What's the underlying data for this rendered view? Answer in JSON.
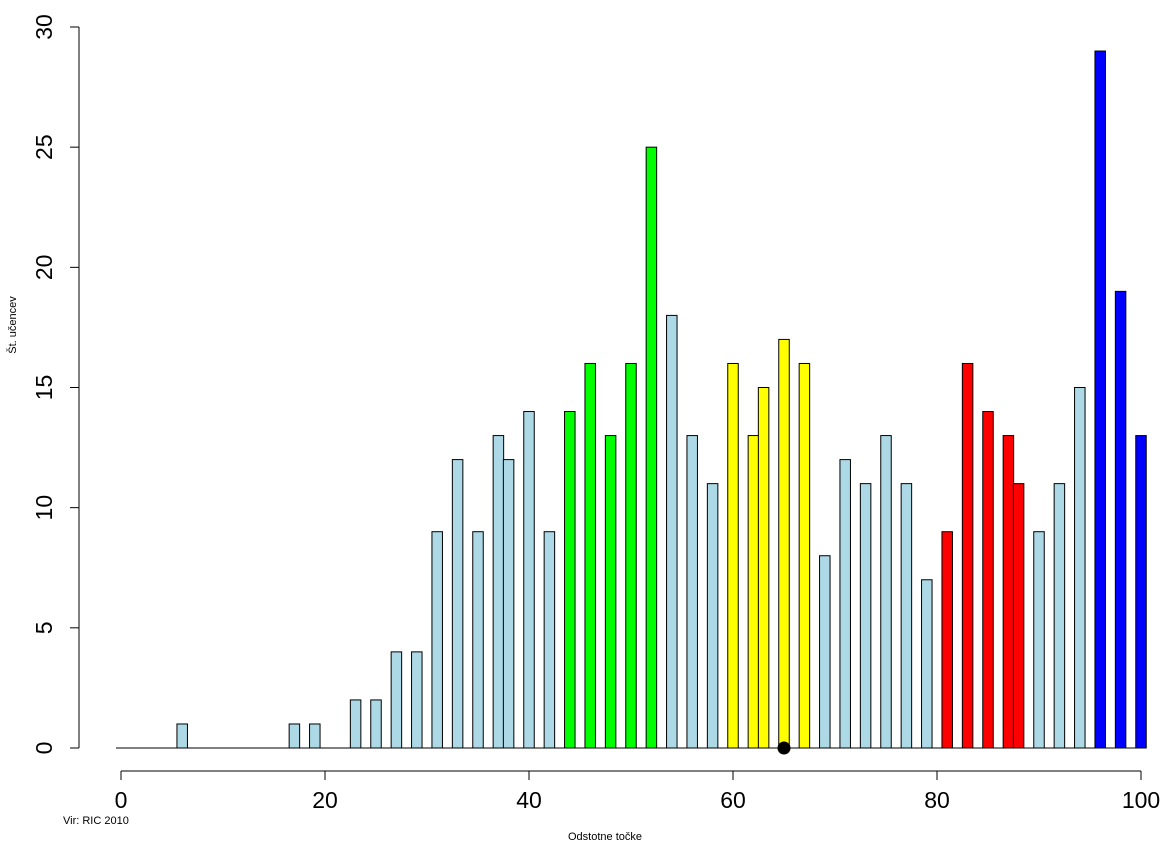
{
  "chart_data": {
    "type": "bar",
    "xlabel": "Odstotne točke",
    "ylabel": "Št. učencev",
    "source_note": "Vir: RIC 2010",
    "xlim": [
      0,
      100
    ],
    "ylim": [
      0,
      30
    ],
    "x_ticks": [
      0,
      20,
      40,
      60,
      80,
      100
    ],
    "y_ticks": [
      0,
      5,
      10,
      15,
      20,
      25,
      30
    ],
    "grid": false,
    "legend": "none",
    "bar_outline": "#000000",
    "colors": {
      "default": "#add8e6",
      "green": "#00ff00",
      "yellow": "#ffff00",
      "red": "#ff0000",
      "blue": "#0000ff",
      "marker": "#000000"
    },
    "marker": {
      "x": 65,
      "y": 0
    },
    "bars": [
      {
        "x": 6,
        "value": 1,
        "color": "default"
      },
      {
        "x": 17,
        "value": 1,
        "color": "default"
      },
      {
        "x": 19,
        "value": 1,
        "color": "default"
      },
      {
        "x": 23,
        "value": 2,
        "color": "default"
      },
      {
        "x": 25,
        "value": 2,
        "color": "default"
      },
      {
        "x": 27,
        "value": 4,
        "color": "default"
      },
      {
        "x": 29,
        "value": 4,
        "color": "default"
      },
      {
        "x": 31,
        "value": 9,
        "color": "default"
      },
      {
        "x": 33,
        "value": 12,
        "color": "default"
      },
      {
        "x": 35,
        "value": 9,
        "color": "default"
      },
      {
        "x": 37,
        "value": 13,
        "color": "default"
      },
      {
        "x": 38,
        "value": 12,
        "color": "default"
      },
      {
        "x": 40,
        "value": 14,
        "color": "default"
      },
      {
        "x": 42,
        "value": 9,
        "color": "default"
      },
      {
        "x": 44,
        "value": 14,
        "color": "green"
      },
      {
        "x": 46,
        "value": 16,
        "color": "green"
      },
      {
        "x": 48,
        "value": 13,
        "color": "green"
      },
      {
        "x": 50,
        "value": 16,
        "color": "green"
      },
      {
        "x": 52,
        "value": 25,
        "color": "green"
      },
      {
        "x": 54,
        "value": 18,
        "color": "default"
      },
      {
        "x": 56,
        "value": 13,
        "color": "default"
      },
      {
        "x": 58,
        "value": 11,
        "color": "default"
      },
      {
        "x": 60,
        "value": 16,
        "color": "yellow"
      },
      {
        "x": 62,
        "value": 13,
        "color": "yellow"
      },
      {
        "x": 63,
        "value": 15,
        "color": "yellow"
      },
      {
        "x": 65,
        "value": 17,
        "color": "yellow"
      },
      {
        "x": 67,
        "value": 16,
        "color": "yellow"
      },
      {
        "x": 69,
        "value": 8,
        "color": "default"
      },
      {
        "x": 71,
        "value": 12,
        "color": "default"
      },
      {
        "x": 73,
        "value": 11,
        "color": "default"
      },
      {
        "x": 75,
        "value": 13,
        "color": "default"
      },
      {
        "x": 77,
        "value": 11,
        "color": "default"
      },
      {
        "x": 79,
        "value": 7,
        "color": "default"
      },
      {
        "x": 81,
        "value": 9,
        "color": "red"
      },
      {
        "x": 83,
        "value": 16,
        "color": "red"
      },
      {
        "x": 85,
        "value": 14,
        "color": "red"
      },
      {
        "x": 87,
        "value": 13,
        "color": "red"
      },
      {
        "x": 88,
        "value": 11,
        "color": "red"
      },
      {
        "x": 90,
        "value": 9,
        "color": "default"
      },
      {
        "x": 92,
        "value": 11,
        "color": "default"
      },
      {
        "x": 94,
        "value": 15,
        "color": "default"
      },
      {
        "x": 96,
        "value": 29,
        "color": "blue"
      },
      {
        "x": 98,
        "value": 19,
        "color": "blue"
      },
      {
        "x": 100,
        "value": 13,
        "color": "blue"
      }
    ]
  }
}
